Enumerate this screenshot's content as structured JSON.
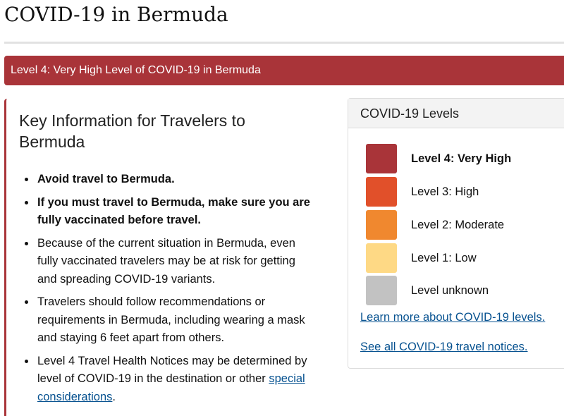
{
  "page_title": "COVID-19 in Bermuda",
  "banner": "Level 4: Very High Level of COVID-19 in Bermuda",
  "key_info": {
    "heading": "Key Information for Travelers to Bermuda",
    "items": [
      {
        "text": "Avoid travel to Bermuda.",
        "bold": true
      },
      {
        "text": "If you must travel to Bermuda, make sure you are fully vaccinated before travel.",
        "bold": true
      },
      {
        "text": "Because of the current situation in Bermuda, even fully vaccinated travelers may be at risk for getting and spreading COVID-19 variants."
      },
      {
        "text": "Travelers should follow recommendations or requirements in Bermuda, including wearing a mask and staying 6 feet apart from others."
      },
      {
        "text_before": "Level 4 Travel Health Notices may be determined by level of COVID-19 in the destination or other ",
        "link": "special considerations",
        "text_after": "."
      }
    ]
  },
  "levels_panel": {
    "title": "COVID-19 Levels",
    "levels": [
      {
        "label": "Level 4: Very High",
        "color": "#a93439",
        "current": true
      },
      {
        "label": "Level 3: High",
        "color": "#e1502a"
      },
      {
        "label": "Level 2: Moderate",
        "color": "#f0882f"
      },
      {
        "label": "Level 1: Low",
        "color": "#fed985"
      },
      {
        "label": "Level unknown",
        "color": "#c2c2c2"
      }
    ],
    "learn_more": "Learn more about COVID-19 levels.",
    "see_all": "See all COVID-19 travel notices."
  }
}
